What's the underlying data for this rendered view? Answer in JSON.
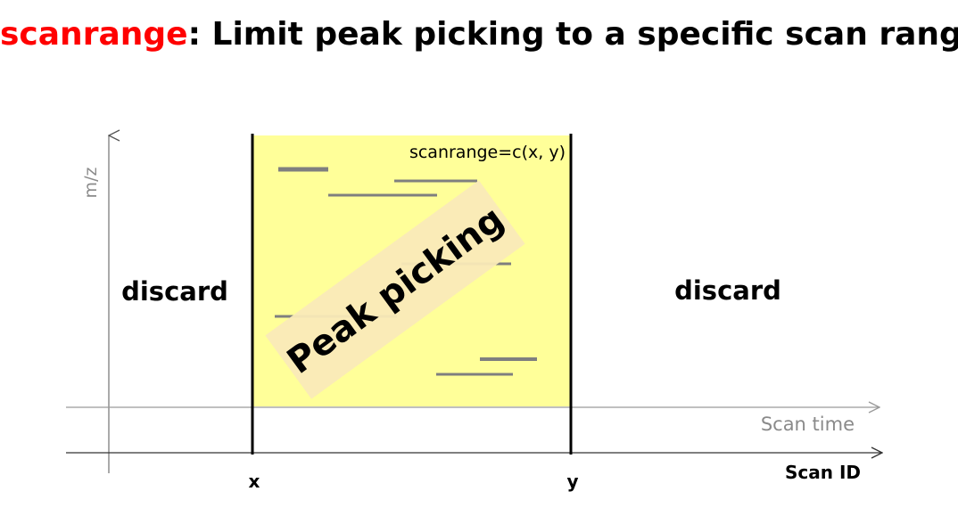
{
  "title": {
    "keyword": "scanrange",
    "separator": ":",
    "rest": " Limit peak picking to a specific scan range",
    "keyword_color": "#ff0000"
  },
  "axes": {
    "y_label": "m/z",
    "x_time_label": "Scan time",
    "x_scan_label": "Scan ID"
  },
  "markers": {
    "x": "x",
    "y": "y"
  },
  "region": {
    "param_label": "scanrange=c(x, y)",
    "fill_color": "#ffff99",
    "picking_label": "Peak picking",
    "picking_box_color": "#faeab8"
  },
  "discard": {
    "left": "discard",
    "right": "discard"
  },
  "peak_color": "#7f7f7f"
}
